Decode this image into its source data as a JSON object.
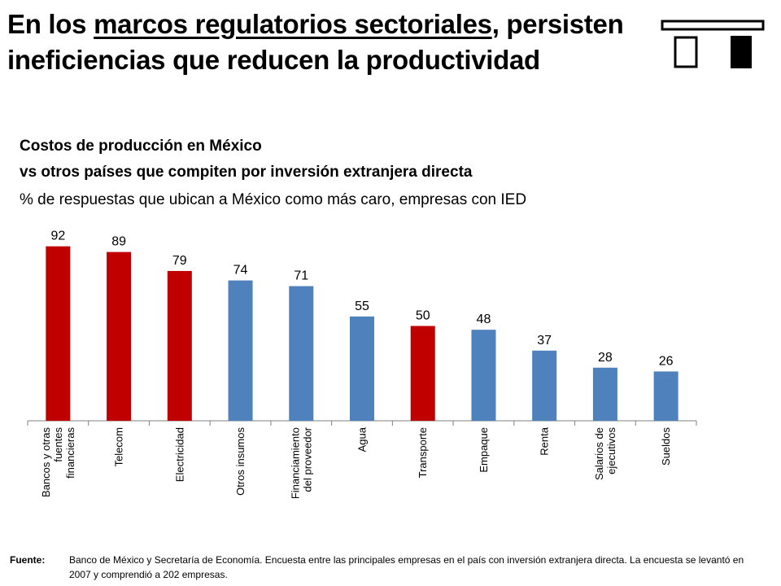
{
  "title": {
    "part1": "En los ",
    "part2": "marcos regulatorios sectoriales",
    "part3": ", persisten ineficiencias que reducen la productividad"
  },
  "subtitle": {
    "line1": "Costos de producción en México",
    "line2": "vs otros países que compiten por inversión extranjera directa",
    "line3": "% de respuestas que ubican a México como más caro, empresas con IED"
  },
  "colors": {
    "red": "#c00000",
    "blue": "#4f81bd",
    "axis": "#808080"
  },
  "chart_data": {
    "type": "bar",
    "title": "Costos de producción en México vs otros países que compiten por inversión extranjera directa",
    "ylabel": "% de respuestas que ubican a México como más caro, empresas con IED",
    "xlabel": "",
    "ylim": [
      0,
      100
    ],
    "grid": false,
    "categories": [
      "Bancos y otras fuentes financieras",
      "Telecom",
      "Electricidad",
      "Otros insumos",
      "Financiamiento del proveedor",
      "Agua",
      "Transporte",
      "Empaque",
      "Renta",
      "Salarios de ejecutivos",
      "Sueldos"
    ],
    "tick_label_lines": [
      [
        "Bancos y otras",
        "fuentes",
        "financieras"
      ],
      [
        "Telecom"
      ],
      [
        "Electricidad"
      ],
      [
        "Otros insumos"
      ],
      [
        "Financiamiento",
        "del proveedor"
      ],
      [
        "Agua"
      ],
      [
        "Transporte"
      ],
      [
        "Empaque"
      ],
      [
        "Renta"
      ],
      [
        "Salarios de",
        "ejecutivos"
      ],
      [
        "Sueldos"
      ]
    ],
    "values": [
      92,
      89,
      79,
      74,
      71,
      55,
      50,
      48,
      37,
      28,
      26
    ],
    "bar_colors": [
      "red",
      "red",
      "red",
      "blue",
      "blue",
      "blue",
      "red",
      "blue",
      "blue",
      "blue",
      "blue"
    ]
  },
  "source": {
    "label": "Fuente:",
    "text": "Banco de México y Secretaría de Economía. Encuesta entre las principales empresas en el país con inversión extranjera directa. La encuesta se levantó en 2007 y comprendió a 202 empresas."
  }
}
